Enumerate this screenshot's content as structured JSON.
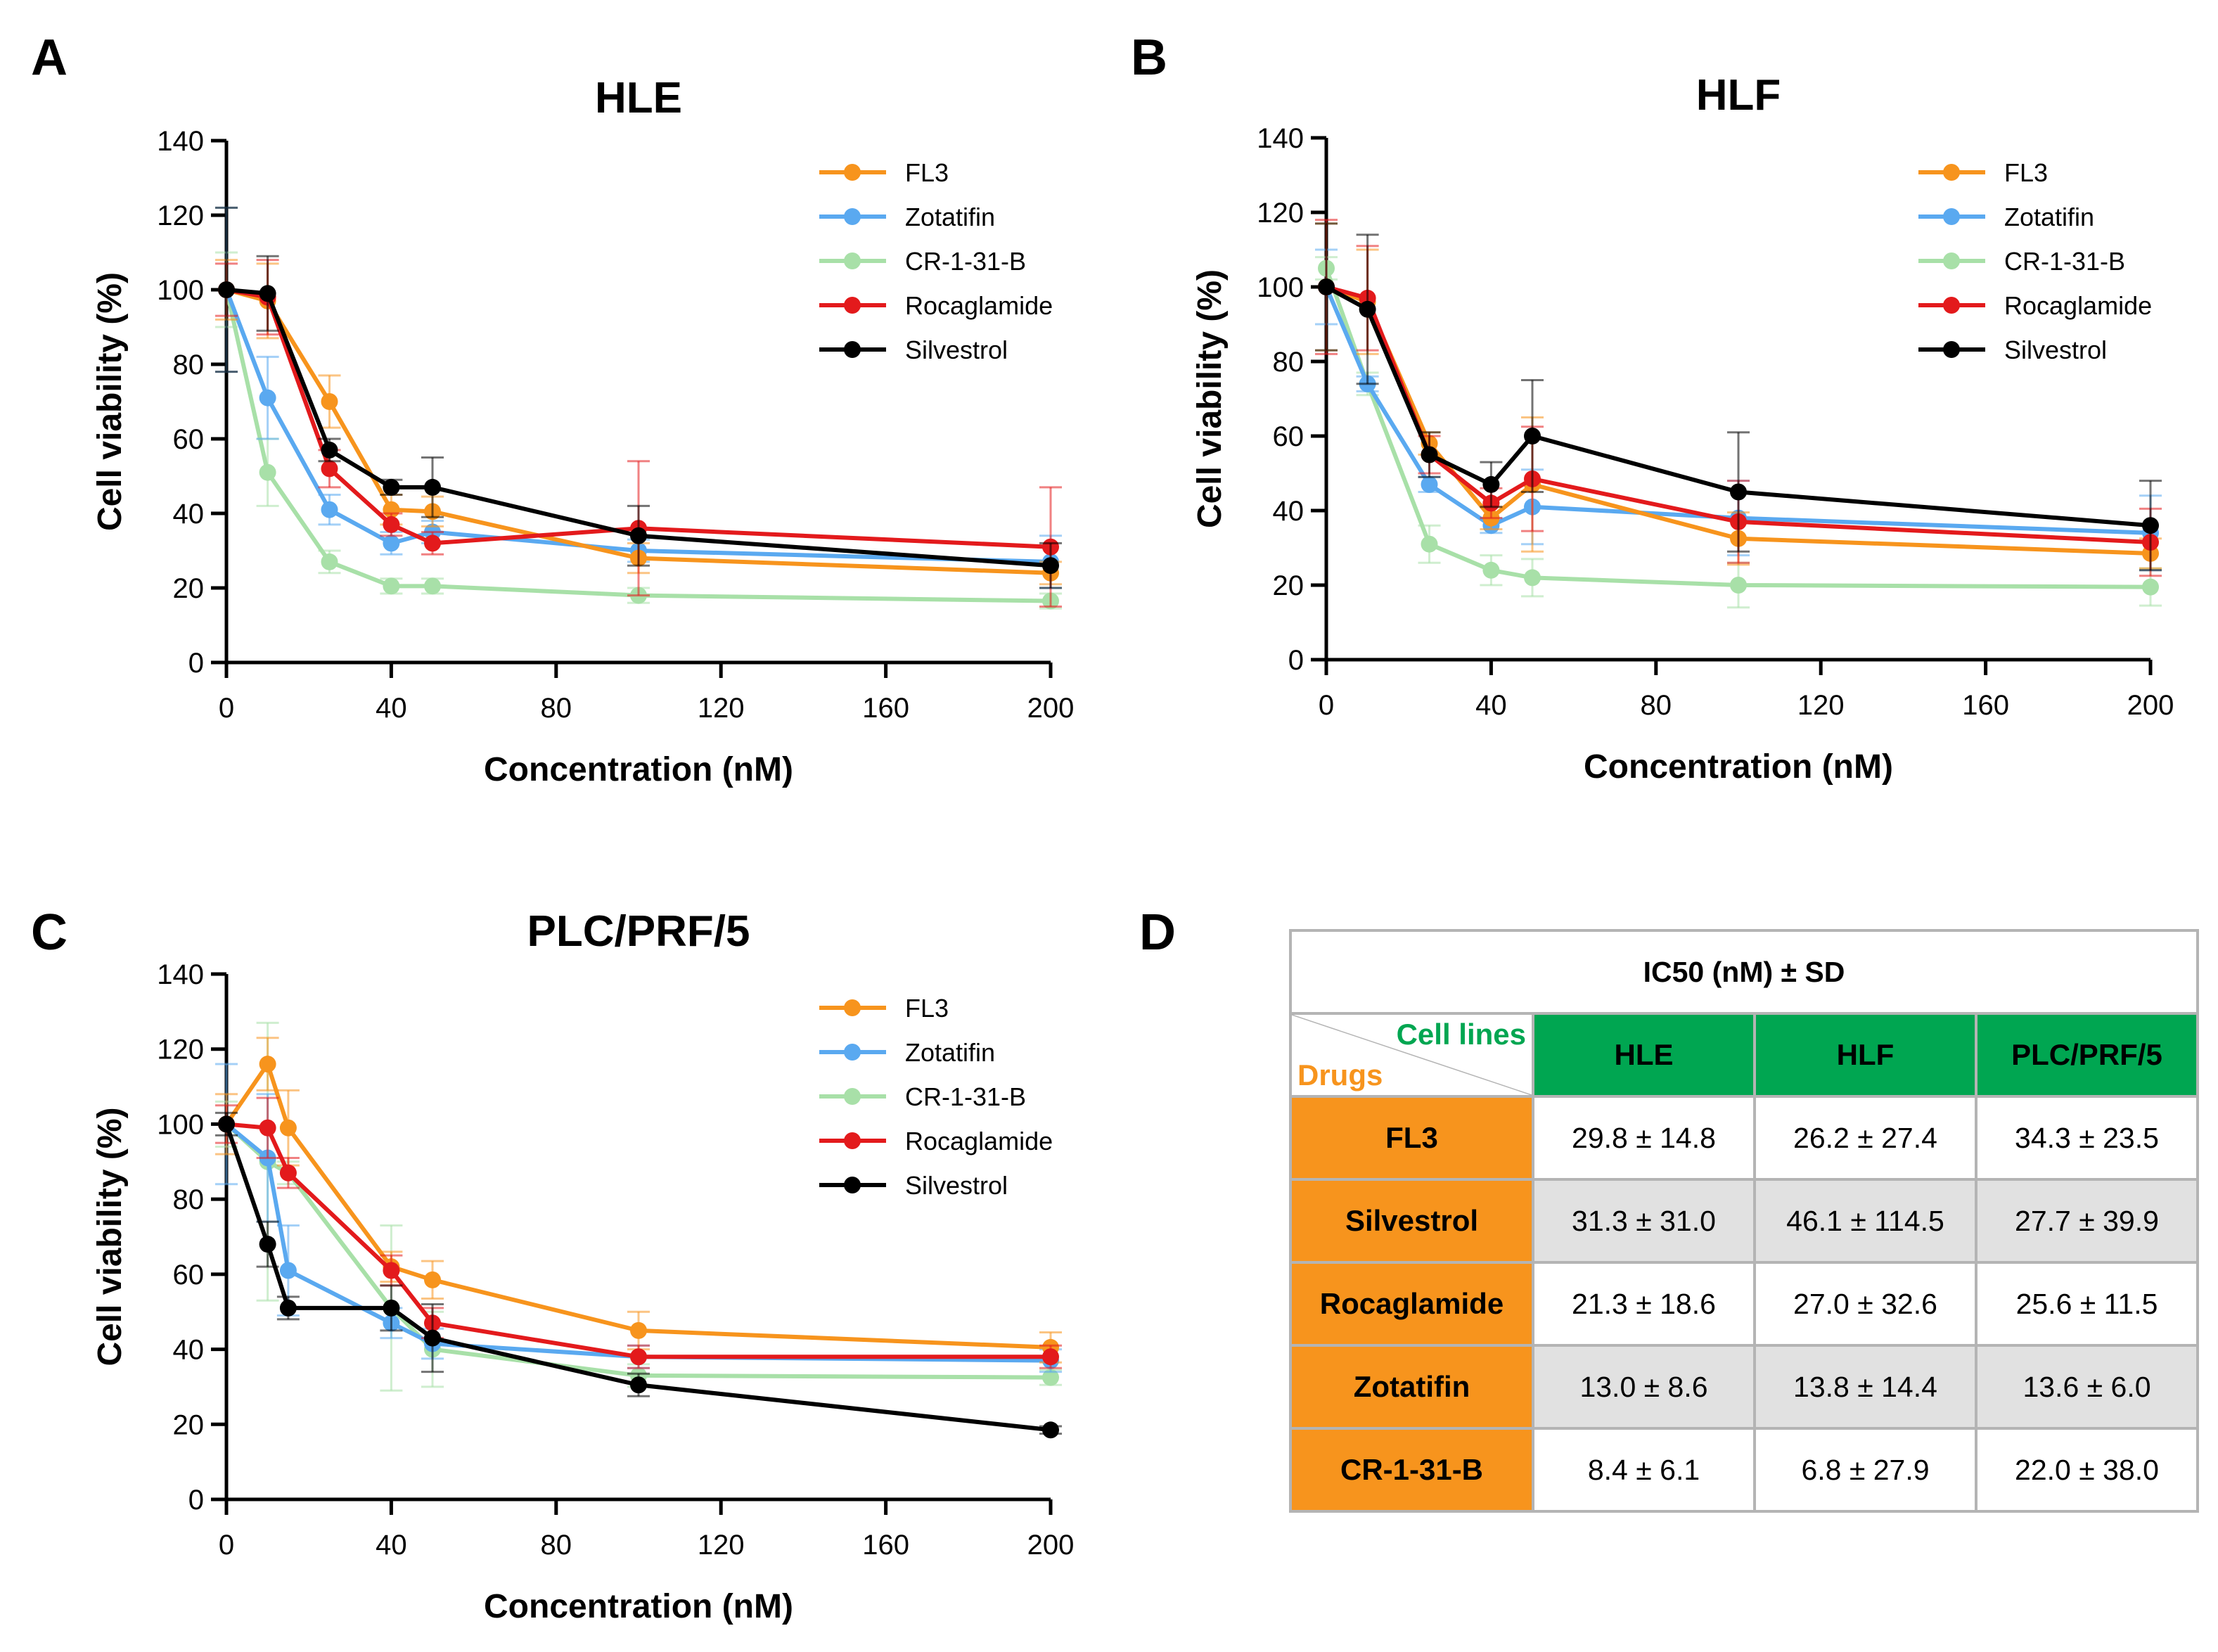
{
  "panels": {
    "a": "A",
    "b": "B",
    "c": "C",
    "d": "D"
  },
  "colors": {
    "FL3": "#f7941d",
    "Zotatifin": "#5aa9f0",
    "CR-1-31-B": "#a8e0a8",
    "Rocaglamide": "#e31a1c",
    "Silvestrol": "#000000"
  },
  "chart_data": [
    {
      "type": "line",
      "title": "HLE",
      "xlabel": "Concentration (nM)",
      "ylabel": "Cell viability (%)",
      "xlim": [
        0,
        200
      ],
      "ylim": [
        0,
        140
      ],
      "xticks": [
        0,
        40,
        80,
        120,
        160,
        200
      ],
      "yticks": [
        0,
        20,
        40,
        60,
        80,
        100,
        120,
        140
      ],
      "legend_position": "top-right",
      "series": [
        {
          "name": "FL3",
          "x": [
            0,
            10,
            25,
            40,
            50,
            100,
            200
          ],
          "values": [
            100,
            97,
            70,
            41,
            40.5,
            28,
            24
          ],
          "errors": [
            8,
            10,
            7,
            4,
            4,
            4,
            3
          ]
        },
        {
          "name": "Zotatifin",
          "x": [
            0,
            10,
            25,
            40,
            50,
            100,
            200
          ],
          "values": [
            100,
            71,
            41,
            32,
            35,
            30,
            27
          ],
          "errors": [
            22,
            11,
            4,
            3,
            3,
            3,
            7
          ]
        },
        {
          "name": "CR-1-31-B",
          "x": [
            0,
            10,
            25,
            40,
            50,
            100,
            200
          ],
          "values": [
            100,
            51,
            27,
            20.5,
            20.5,
            18,
            16.5
          ],
          "errors": [
            10,
            9,
            3,
            2,
            2,
            2,
            2
          ]
        },
        {
          "name": "Rocaglamide",
          "x": [
            0,
            10,
            25,
            40,
            50,
            100,
            200
          ],
          "values": [
            100,
            98,
            52,
            37,
            32,
            36,
            31
          ],
          "errors": [
            7,
            10,
            5,
            3,
            3,
            18,
            16
          ]
        },
        {
          "name": "Silvestrol",
          "x": [
            0,
            10,
            25,
            40,
            50,
            100,
            200
          ],
          "values": [
            100,
            99,
            57,
            47,
            47,
            34,
            26
          ],
          "errors": [
            22,
            10,
            3,
            2,
            8,
            8,
            6
          ]
        }
      ]
    },
    {
      "type": "line",
      "title": "HLF",
      "xlabel": "Concentration (nM)",
      "ylabel": "Cell viability (%)",
      "xlim": [
        0,
        200
      ],
      "ylim": [
        0,
        140
      ],
      "xticks": [
        0,
        40,
        80,
        120,
        160,
        200
      ],
      "yticks": [
        0,
        20,
        40,
        60,
        80,
        100,
        120,
        140
      ],
      "legend_position": "top-right",
      "series": [
        {
          "name": "FL3",
          "x": [
            0,
            10,
            25,
            40,
            50,
            100,
            200
          ],
          "values": [
            100,
            96,
            58,
            38,
            47,
            32.5,
            28.5
          ],
          "errors": [
            17,
            14,
            3,
            3,
            18,
            7,
            4
          ]
        },
        {
          "name": "Zotatifin",
          "x": [
            0,
            10,
            25,
            40,
            50,
            100,
            200
          ],
          "values": [
            100,
            74,
            47,
            36,
            41,
            38,
            34
          ],
          "errors": [
            10,
            2,
            2,
            2,
            10,
            10,
            10
          ]
        },
        {
          "name": "CR-1-31-B",
          "x": [
            0,
            10,
            25,
            40,
            50,
            100,
            200
          ],
          "values": [
            105,
            74,
            31,
            24,
            22,
            20,
            19.5
          ],
          "errors": [
            3,
            3,
            5,
            4,
            5,
            6,
            5
          ]
        },
        {
          "name": "Rocaglamide",
          "x": [
            0,
            10,
            25,
            40,
            50,
            100,
            200
          ],
          "values": [
            100,
            97,
            55,
            42,
            48.5,
            37,
            31.5
          ],
          "errors": [
            18,
            14,
            5,
            4,
            14,
            11,
            9
          ]
        },
        {
          "name": "Silvestrol",
          "x": [
            0,
            10,
            25,
            40,
            50,
            100,
            200
          ],
          "values": [
            100,
            94,
            55,
            47,
            60,
            45,
            36
          ],
          "errors": [
            17,
            20,
            6,
            6,
            15,
            16,
            12
          ]
        }
      ]
    },
    {
      "type": "line",
      "title": "PLC/PRF/5",
      "xlabel": "Concentration (nM)",
      "ylabel": "Cell viability (%)",
      "xlim": [
        0,
        200
      ],
      "ylim": [
        0,
        140
      ],
      "xticks": [
        0,
        40,
        80,
        120,
        160,
        200
      ],
      "yticks": [
        0,
        20,
        40,
        60,
        80,
        100,
        120,
        140
      ],
      "legend_position": "top-right",
      "series": [
        {
          "name": "FL3",
          "x": [
            0,
            10,
            15,
            40,
            50,
            100,
            200
          ],
          "values": [
            100,
            116,
            99,
            62,
            58.5,
            45,
            40.5
          ],
          "errors": [
            8,
            7,
            10,
            4,
            5,
            5,
            4
          ]
        },
        {
          "name": "Zotatifin",
          "x": [
            0,
            10,
            15,
            40,
            50,
            100,
            200
          ],
          "values": [
            100,
            91,
            61,
            47,
            41.5,
            38,
            37
          ],
          "errors": [
            16,
            17,
            12,
            4,
            4,
            3,
            3
          ]
        },
        {
          "name": "CR-1-31-B",
          "x": [
            0,
            10,
            15,
            40,
            50,
            100,
            200
          ],
          "values": [
            100,
            90,
            87,
            51,
            40,
            33,
            32.5
          ],
          "errors": [
            6,
            37,
            3,
            22,
            10,
            3,
            2
          ]
        },
        {
          "name": "Rocaglamide",
          "x": [
            0,
            10,
            15,
            40,
            50,
            100,
            200
          ],
          "values": [
            100,
            99,
            87,
            61,
            47,
            38,
            38
          ],
          "errors": [
            5,
            8,
            4,
            4,
            4,
            3,
            3
          ]
        },
        {
          "name": "Silvestrol",
          "x": [
            0,
            10,
            15,
            40,
            50,
            100,
            200
          ],
          "values": [
            100,
            68,
            51,
            51,
            43,
            30.5,
            18.5
          ],
          "errors": [
            3,
            6,
            3,
            6,
            9,
            3,
            1
          ]
        }
      ]
    },
    {
      "type": "table",
      "title": "IC50 (nM) ± SD",
      "corner_top": "Cell lines",
      "corner_bottom": "Drugs",
      "columns": [
        "HLE",
        "HLF",
        "PLC/PRF/5"
      ],
      "rows": [
        {
          "drug": "FL3",
          "values": [
            "29.8 ± 14.8",
            "26.2 ± 27.4",
            "34.3 ± 23.5"
          ]
        },
        {
          "drug": "Silvestrol",
          "values": [
            "31.3 ± 31.0",
            "46.1 ± 114.5",
            "27.7 ± 39.9"
          ]
        },
        {
          "drug": "Rocaglamide",
          "values": [
            "21.3 ± 18.6",
            "27.0 ± 32.6",
            "25.6 ± 11.5"
          ]
        },
        {
          "drug": "Zotatifin",
          "values": [
            "13.0 ± 8.6",
            "13.8 ± 14.4",
            "13.6 ± 6.0"
          ]
        },
        {
          "drug": "CR-1-31-B",
          "values": [
            "8.4 ± 6.1",
            "6.8 ± 27.9",
            "22.0 ± 38.0"
          ]
        }
      ]
    }
  ]
}
